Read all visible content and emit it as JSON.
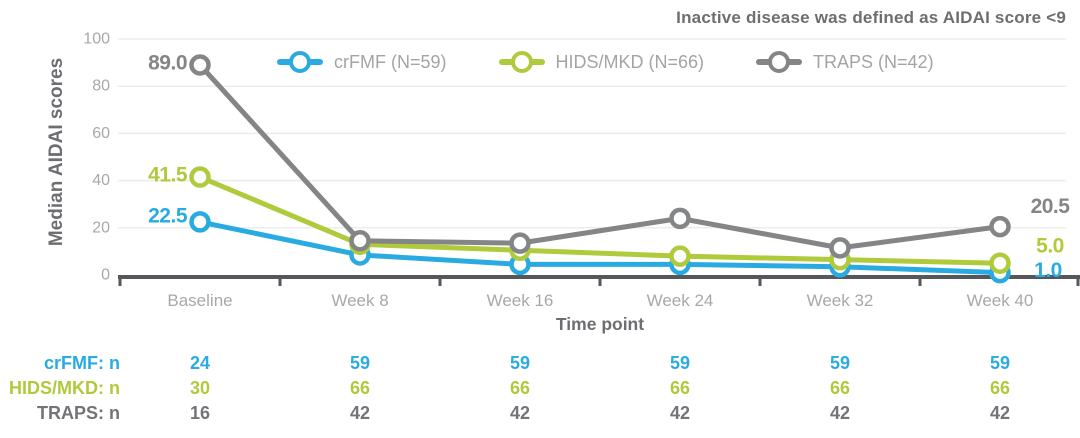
{
  "note": "Inactive disease was defined as AIDAI score <9",
  "palette": {
    "crfmf": "#29ABE2",
    "hids_mkd": "#AFCA3B",
    "traps": "#838587",
    "grid_line": "#ECECEC",
    "axis_line": "#55575B",
    "tick_text": "#A6A8AB",
    "heading_text": "#6D6E71",
    "legend_text": "#A2A4A7"
  },
  "chart_data": {
    "type": "line",
    "title": "Inactive disease was defined as AIDAI score <9",
    "xlabel": "Time point",
    "ylabel": "Median AIDAI scores",
    "ylim": [
      0,
      100
    ],
    "yticks": [
      0,
      20,
      40,
      60,
      80,
      100
    ],
    "grid": true,
    "legend_position": "top",
    "marker": "open-circle",
    "categories": [
      "Baseline",
      "Week 8",
      "Week 16",
      "Week 24",
      "Week 32",
      "Week 40"
    ],
    "series": [
      {
        "name": "crFMF (N=59)",
        "color": "#29ABE2",
        "values": [
          22.5,
          8.5,
          4.5,
          4.5,
          3.5,
          1.0
        ],
        "label_start": "22.5",
        "label_end": "1.0"
      },
      {
        "name": "HIDS/MKD (N=66)",
        "color": "#AFCA3B",
        "values": [
          41.5,
          13.0,
          10.5,
          8.0,
          6.5,
          5.0
        ],
        "label_start": "41.5",
        "label_end": "5.0"
      },
      {
        "name": "TRAPS (N=42)",
        "color": "#838587",
        "values": [
          89.0,
          14.5,
          13.5,
          24.0,
          11.5,
          20.5
        ],
        "label_start": "89.0",
        "label_end": "20.5"
      }
    ]
  },
  "table": {
    "rows": [
      {
        "label": "crFMF: n",
        "color": "#29ABE2",
        "values": [
          "24",
          "59",
          "59",
          "59",
          "59",
          "59"
        ]
      },
      {
        "label": "HIDS/MKD: n",
        "color": "#AFCA3B",
        "values": [
          "30",
          "66",
          "66",
          "66",
          "66",
          "66"
        ]
      },
      {
        "label": "TRAPS: n",
        "color": "#737477",
        "values": [
          "16",
          "42",
          "42",
          "42",
          "42",
          "42"
        ]
      }
    ]
  }
}
